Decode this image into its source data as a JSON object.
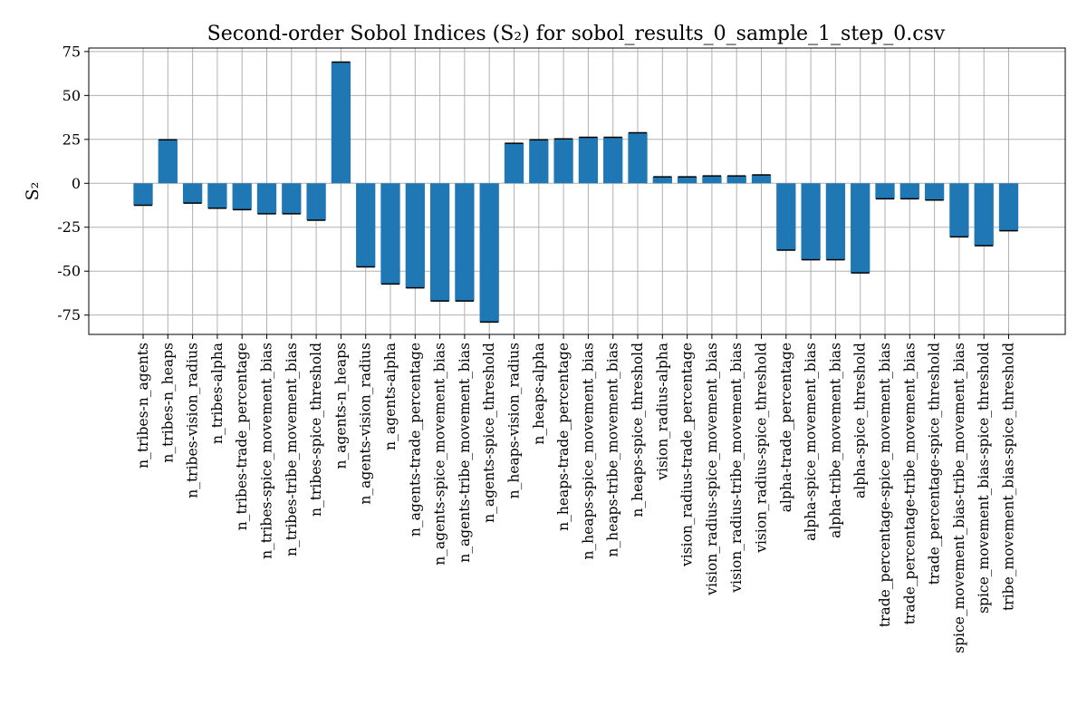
{
  "chart_data": {
    "type": "bar",
    "title": "Second-order Sobol Indices (S₂) for sobol_results_0_sample_1_step_0.csv",
    "xlabel": "",
    "ylabel": "S₂",
    "ylim": [
      -86,
      77
    ],
    "yticks": [
      -75,
      -50,
      -25,
      0,
      25,
      50,
      75
    ],
    "grid": true,
    "bar_color": "#1f77b4",
    "error_bars": true,
    "categories": [
      "n_tribes-n_agents",
      "n_tribes-n_heaps",
      "n_tribes-vision_radius",
      "n_tribes-alpha",
      "n_tribes-trade_percentage",
      "n_tribes-spice_movement_bias",
      "n_tribes-tribe_movement_bias",
      "n_tribes-spice_threshold",
      "n_agents-n_heaps",
      "n_agents-vision_radius",
      "n_agents-alpha",
      "n_agents-trade_percentage",
      "n_agents-spice_movement_bias",
      "n_agents-tribe_movement_bias",
      "n_agents-spice_threshold",
      "n_heaps-vision_radius",
      "n_heaps-alpha",
      "n_heaps-trade_percentage",
      "n_heaps-spice_movement_bias",
      "n_heaps-tribe_movement_bias",
      "n_heaps-spice_threshold",
      "vision_radius-alpha",
      "vision_radius-trade_percentage",
      "vision_radius-spice_movement_bias",
      "vision_radius-tribe_movement_bias",
      "vision_radius-spice_threshold",
      "alpha-trade_percentage",
      "alpha-spice_movement_bias",
      "alpha-tribe_movement_bias",
      "alpha-spice_threshold",
      "trade_percentage-spice_movement_bias",
      "trade_percentage-tribe_movement_bias",
      "trade_percentage-spice_threshold",
      "spice_movement_bias-tribe_movement_bias",
      "spice_movement_bias-spice_threshold",
      "tribe_movement_bias-spice_threshold"
    ],
    "values": [
      -12.5,
      24.8,
      -11.3,
      -14.2,
      -15.0,
      -17.3,
      -17.3,
      -21.0,
      69.0,
      -47.6,
      -57.3,
      -59.5,
      -67.0,
      -67.0,
      -79.0,
      22.8,
      24.8,
      25.3,
      26.2,
      26.2,
      28.8,
      3.7,
      3.7,
      4.2,
      4.2,
      4.8,
      -38.0,
      -43.5,
      -43.5,
      -51.0,
      -8.8,
      -8.8,
      -9.5,
      -30.5,
      -35.5,
      -27.0
    ]
  }
}
